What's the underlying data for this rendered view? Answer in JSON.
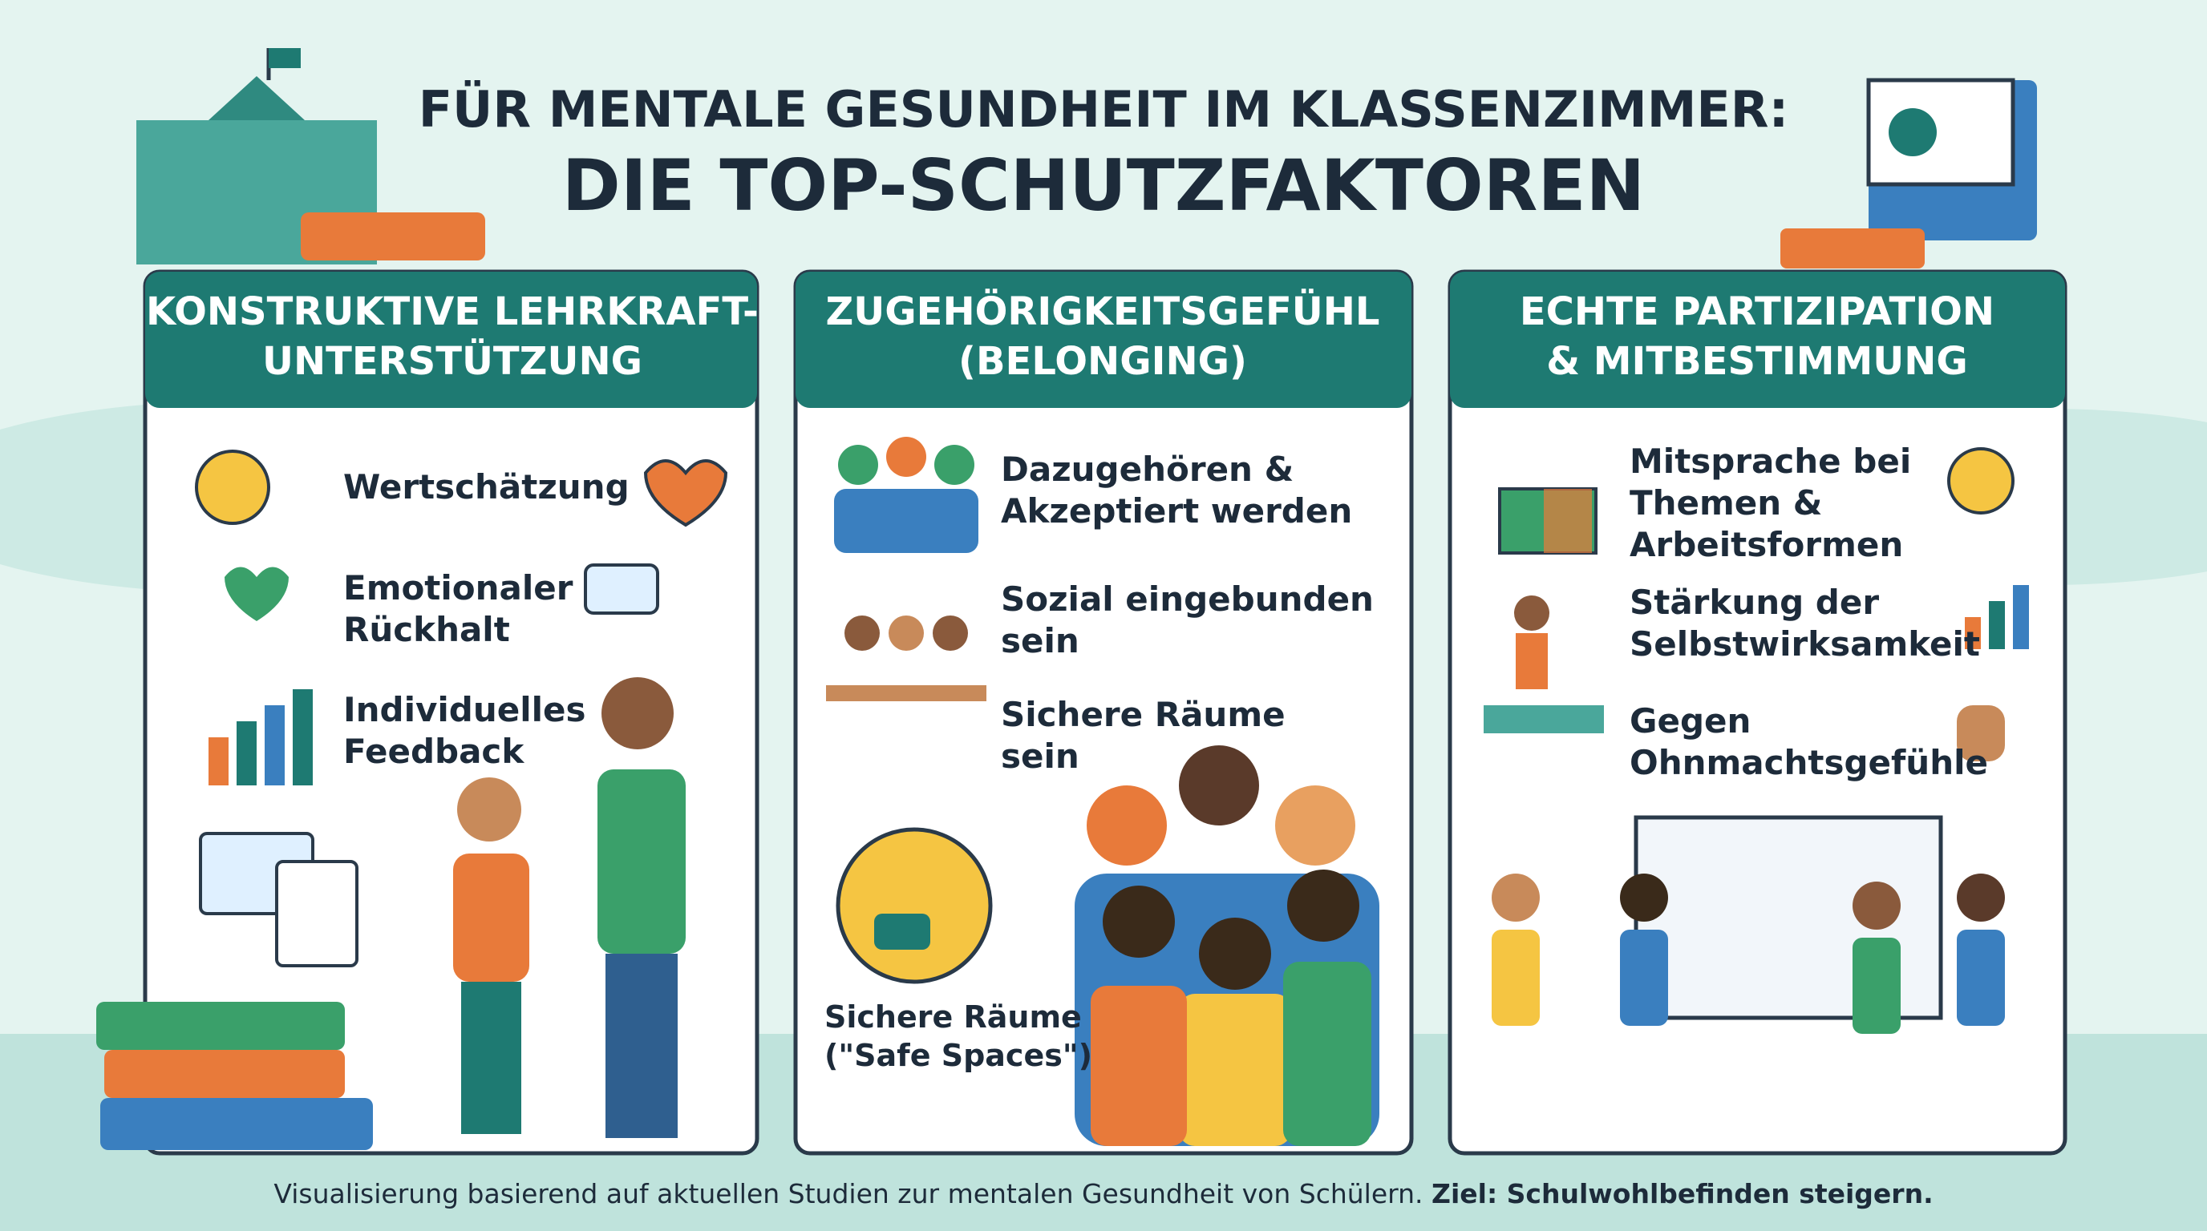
{
  "header": {
    "title_line1": "FÜR MENTALE GESUNDHEIT IM KLASSENZIMMER:",
    "title_line2": "DIE TOP-SCHUTZFAKTOREN"
  },
  "panels": [
    {
      "title": "KONSTRUKTIVE LEHRKRAFT-\nUNTERSTÜTZUNG",
      "items": [
        "Wertschätzung",
        "Emotionaler\nRückhalt",
        "Individuelles\nFeedback"
      ]
    },
    {
      "title": "ZUGEHÖRIGKEITSGEFÜHL\n(BELONGING)",
      "items": [
        "Dazugehören &\nAkzeptiert werden",
        "Sozial eingebunden\nsein",
        "Sichere Räume\nsein"
      ],
      "caption": "Sichere Räume\n(\"Safe Spaces\")"
    },
    {
      "title": "ECHTE PARTIZIPATION\n& MITBESTIMMUNG",
      "items": [
        "Mitsprache bei\nThemen &\nArbeitsformen",
        "Stärkung der\nSelbstwirksamkeit",
        "Gegen\nOhnmachtsgefühle"
      ]
    }
  ],
  "footer": {
    "text": "Visualisierung basierend auf aktuellen Studien zur mentalen Gesundheit von Schülern.",
    "bold": "Ziel: Schulwohlbefinden steigern."
  }
}
